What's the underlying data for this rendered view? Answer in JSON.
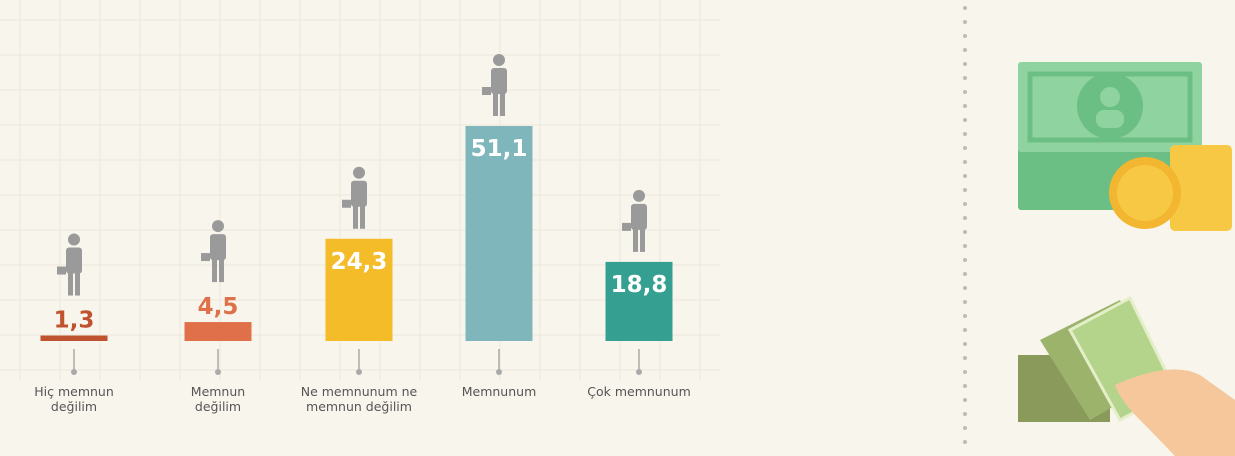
{
  "chart_data": {
    "type": "bar",
    "categories": [
      "Hiç memnun değilim",
      "Memnun değilim",
      "Ne memnunum ne memnun değilim",
      "Memnunum",
      "Çok memnunum"
    ],
    "values": [
      1.3,
      4.5,
      24.3,
      51.1,
      18.8
    ],
    "value_labels": [
      "1,3",
      "4,5",
      "24,3",
      "51,1",
      "18,8"
    ],
    "colors": [
      "#c0532f",
      "#e07049",
      "#f5bc2a",
      "#7fb6bb",
      "#35a091"
    ]
  }
}
